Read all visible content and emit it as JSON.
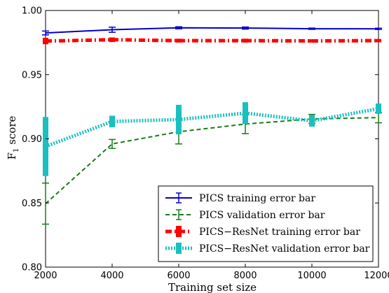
{
  "chart_data": {
    "type": "line",
    "title": "",
    "xlabel": "Training set size",
    "ylabel": "F",
    "ylabel_sub": "1",
    "ylabel_rest": " score",
    "xlim": [
      2000,
      12000
    ],
    "ylim": [
      0.8,
      1.0
    ],
    "xticks": [
      2000,
      4000,
      6000,
      8000,
      10000,
      12000
    ],
    "yticks": [
      0.8,
      0.85,
      0.9,
      0.95,
      1.0
    ],
    "xtick_labels": [
      "2000",
      "4000",
      "6000",
      "8000",
      "10000",
      "12000"
    ],
    "ytick_labels": [
      "0.80",
      "0.85",
      "0.90",
      "0.95",
      "1.00"
    ],
    "grid": false,
    "legend_position": "bottom-right",
    "x": [
      2000,
      4000,
      6000,
      8000,
      10000,
      12000
    ],
    "series": [
      {
        "name": "PICS training error bar",
        "color": "#0000cc",
        "style": "solid",
        "values": [
          0.9825,
          0.985,
          0.9865,
          0.9863,
          0.9858,
          0.9857
        ],
        "errors": [
          0.0015,
          0.002,
          0.0008,
          0.0008,
          0.0005,
          0.0005
        ]
      },
      {
        "name": "PICS validation error bar",
        "color": "#1a7a1a",
        "style": "dashed",
        "values": [
          0.8495,
          0.896,
          0.9055,
          0.9115,
          0.9155,
          0.9165
        ],
        "errors": [
          0.016,
          0.0035,
          0.0095,
          0.0075,
          0.0035,
          0.004
        ]
      },
      {
        "name": "PICS−ResNet training error bar",
        "color": "#ff0000",
        "style": "dashdot",
        "values": [
          0.9762,
          0.9772,
          0.9765,
          0.9765,
          0.9763,
          0.9765
        ],
        "errors": [
          0.0025,
          0.0018,
          0.0015,
          0.0015,
          0.0013,
          0.0013
        ]
      },
      {
        "name": "PICS−ResNet validation error bar",
        "color": "#1abfbf",
        "style": "dotted",
        "values": [
          0.894,
          0.9135,
          0.915,
          0.92,
          0.914,
          0.9235
        ],
        "errors": [
          0.023,
          0.0045,
          0.0115,
          0.0085,
          0.0045,
          0.004
        ]
      }
    ]
  }
}
